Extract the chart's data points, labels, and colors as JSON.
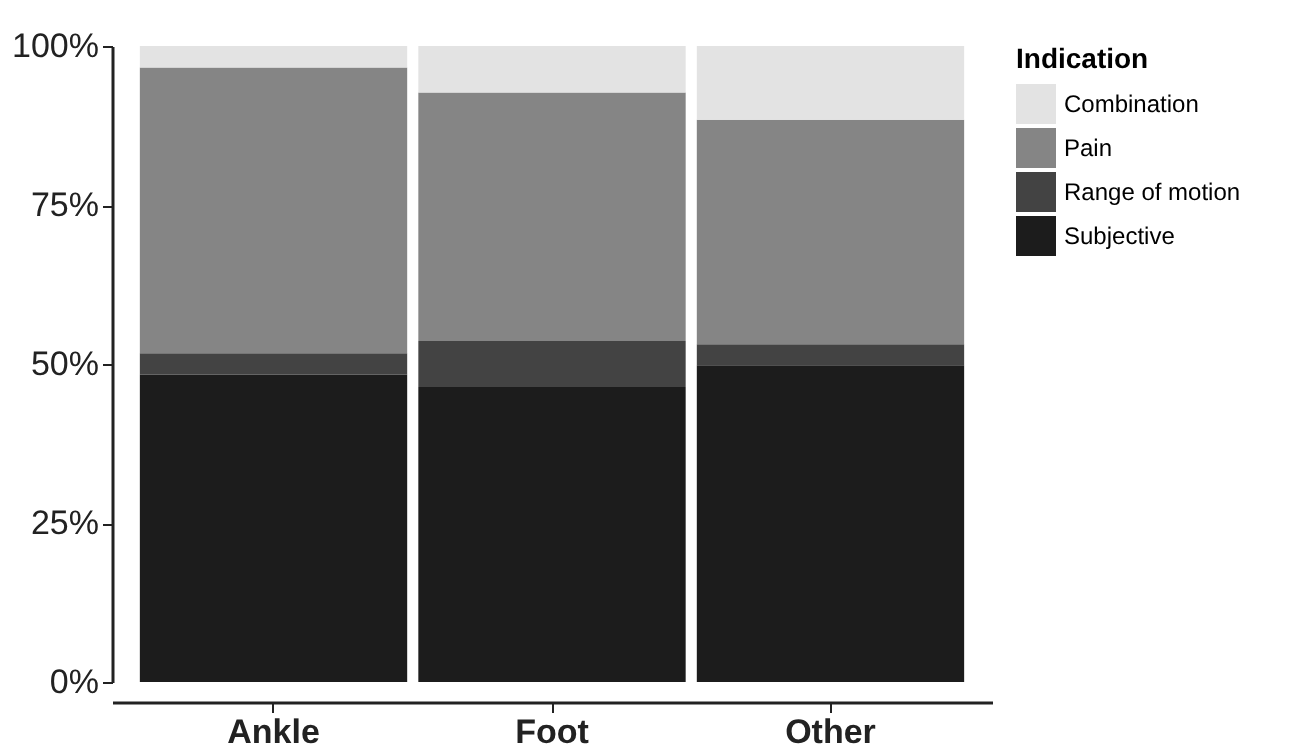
{
  "chart_data": {
    "type": "bar",
    "stacked": true,
    "legend_title": "Indication",
    "legend": "right",
    "categories": [
      "Ankle",
      "Foot",
      "Other"
    ],
    "series": [
      {
        "name": "Subjective",
        "color": "#1c1c1c",
        "values": [
          48.3,
          46.4,
          49.8
        ]
      },
      {
        "name": "Range of motion",
        "color": "#434343",
        "values": [
          3.4,
          7.2,
          3.3
        ]
      },
      {
        "name": "Pain",
        "color": "#858585",
        "values": [
          44.9,
          39.1,
          35.3
        ]
      },
      {
        "name": "Combination",
        "color": "#e3e3e3",
        "values": [
          3.4,
          7.3,
          11.6
        ]
      }
    ],
    "ylim": [
      0,
      100
    ],
    "yticks": [
      {
        "value": 0,
        "label": "0%"
      },
      {
        "value": 25,
        "label": "25%"
      },
      {
        "value": 50,
        "label": "50%"
      },
      {
        "value": 75,
        "label": "75%"
      },
      {
        "value": 100,
        "label": "100%"
      }
    ],
    "grid": false
  }
}
